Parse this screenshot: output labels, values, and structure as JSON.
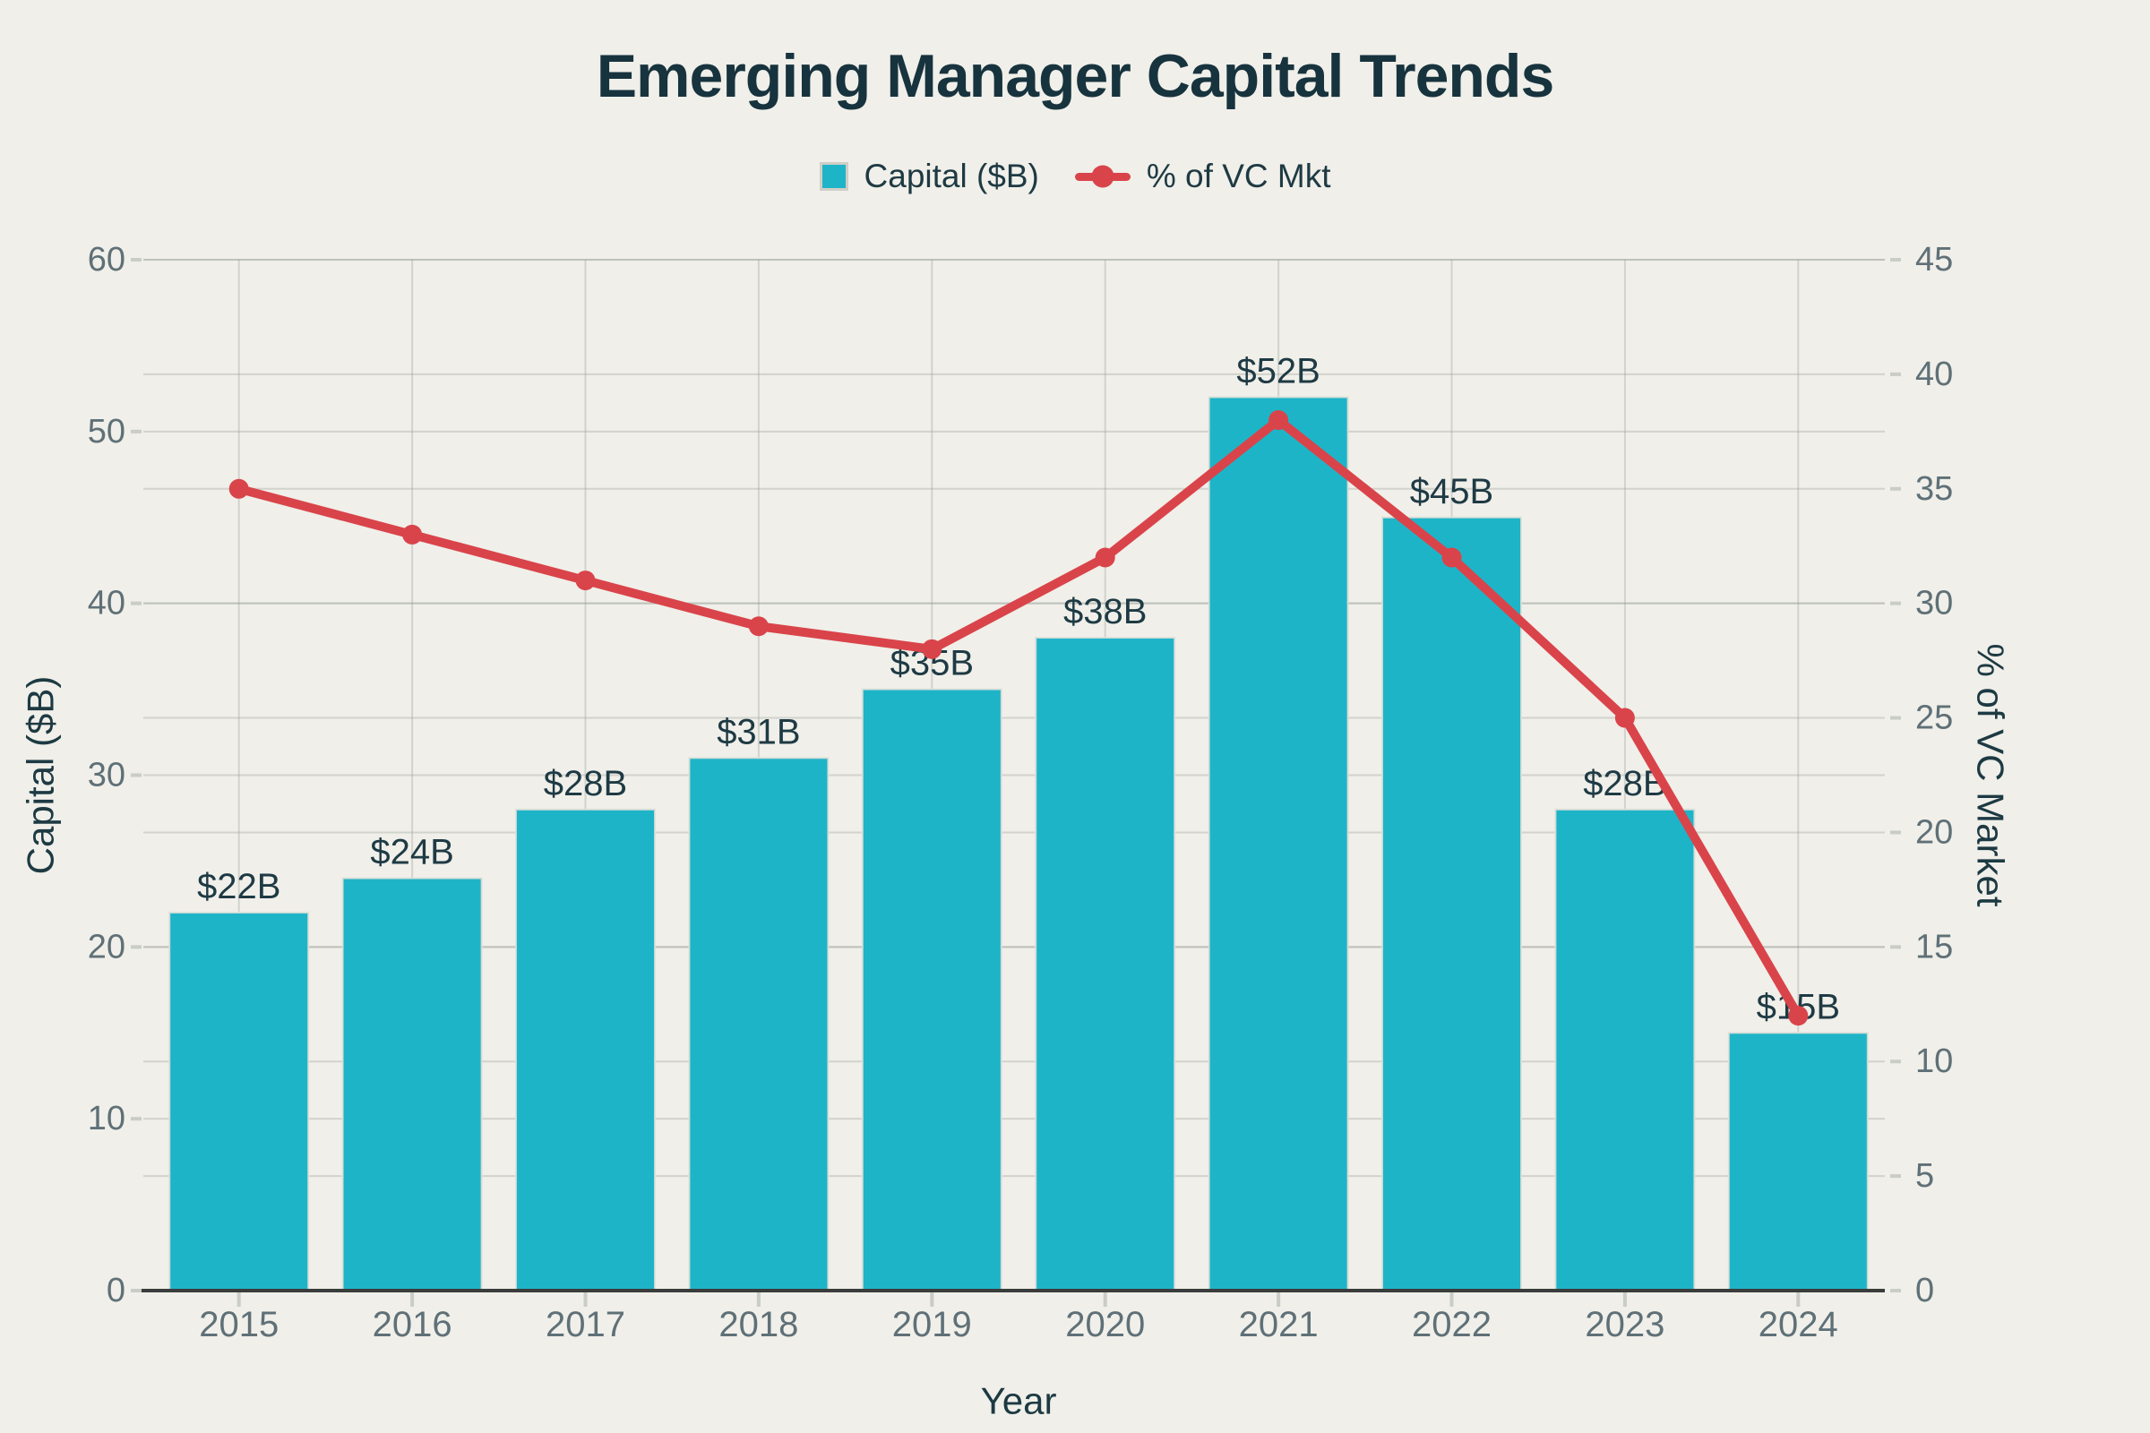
{
  "page": {
    "background": "#f0efe9"
  },
  "chart_data": {
    "type": "bar",
    "title": "Emerging Manager Capital Trends",
    "categories": [
      "2015",
      "2016",
      "2017",
      "2018",
      "2019",
      "2020",
      "2021",
      "2022",
      "2023",
      "2024"
    ],
    "x_axis": {
      "title": "Year"
    },
    "left_axis": {
      "title": "Capital ($B)",
      "min": 0,
      "max": 60,
      "ticks": [
        0,
        10,
        20,
        30,
        40,
        50,
        60
      ]
    },
    "right_axis": {
      "title": "% of VC Market",
      "min": 0,
      "max": 45,
      "ticks": [
        0,
        5,
        10,
        15,
        20,
        25,
        30,
        35,
        40,
        45
      ]
    },
    "series": [
      {
        "name": "Capital ($B)",
        "type": "bar",
        "axis": "left",
        "color": "#1eb4c8",
        "values": [
          22,
          24,
          28,
          31,
          35,
          38,
          52,
          45,
          28,
          15
        ],
        "labels": [
          "$22B",
          "$24B",
          "$28B",
          "$31B",
          "$35B",
          "$38B",
          "$52B",
          "$45B",
          "$28B",
          "$15B"
        ]
      },
      {
        "name": "% of VC Mkt",
        "type": "line",
        "axis": "right",
        "color": "#d9444a",
        "values": [
          35,
          33,
          31,
          29,
          28,
          32,
          38,
          32,
          25,
          12
        ]
      }
    ],
    "grid": true,
    "legend_position": "top"
  }
}
